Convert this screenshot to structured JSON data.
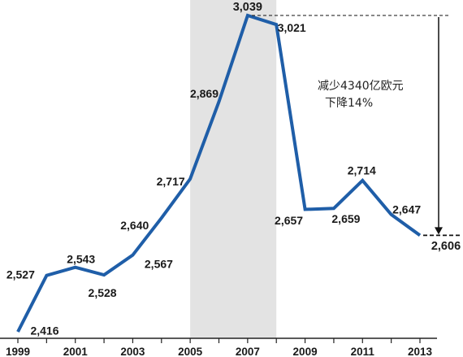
{
  "chart_data": {
    "type": "line",
    "x": [
      1999,
      2000,
      2001,
      2002,
      2003,
      2004,
      2005,
      2006,
      2007,
      2008,
      2009,
      2010,
      2011,
      2012,
      2013
    ],
    "values": [
      2416,
      2527,
      2543,
      2528,
      2567,
      2640,
      2717,
      2869,
      3039,
      3021,
      2657,
      2659,
      2714,
      2647,
      2606
    ],
    "data_labels": [
      "2,416",
      "2,527",
      "2,543",
      "2,528",
      "2,567",
      "2,640",
      "2,717",
      "2,869",
      "3,039",
      "3,021",
      "2,657",
      "2,659",
      "2,714",
      "2,647",
      "2,606"
    ],
    "x_tick_labels": [
      "1999",
      "2001",
      "2003",
      "2005",
      "2007",
      "2009",
      "2011",
      "2013"
    ],
    "xlim": [
      1999,
      2013
    ],
    "shaded_period": [
      2005,
      2008
    ],
    "annotation": {
      "line1": "减少4340亿欧元",
      "line2": "下降14%",
      "from_value": 3039,
      "to_value": 2606
    },
    "title": "",
    "xlabel": "",
    "ylabel": "",
    "grid": false,
    "legend": "none",
    "colors": {
      "line": "#1f5ea8",
      "shade": "#e3e3e3",
      "text": "#1a1a1a",
      "axis": "#222222"
    }
  }
}
